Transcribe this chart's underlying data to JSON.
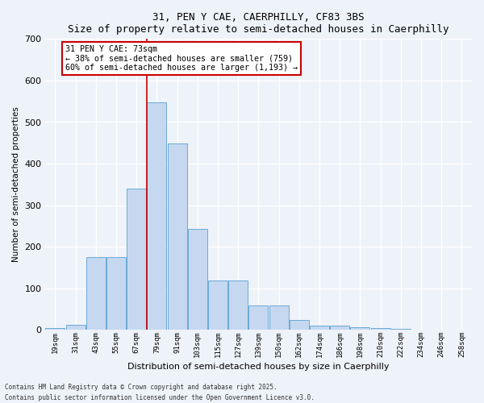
{
  "title1": "31, PEN Y CAE, CAERPHILLY, CF83 3BS",
  "title2": "Size of property relative to semi-detached houses in Caerphilly",
  "xlabel": "Distribution of semi-detached houses by size in Caerphilly",
  "ylabel": "Number of semi-detached properties",
  "bar_labels": [
    "19sqm",
    "31sqm",
    "43sqm",
    "55sqm",
    "67sqm",
    "79sqm",
    "91sqm",
    "103sqm",
    "115sqm",
    "127sqm",
    "139sqm",
    "150sqm",
    "162sqm",
    "174sqm",
    "186sqm",
    "198sqm",
    "210sqm",
    "222sqm",
    "234sqm",
    "246sqm",
    "258sqm"
  ],
  "bar_values": [
    5,
    13,
    175,
    175,
    340,
    548,
    448,
    243,
    120,
    120,
    58,
    58,
    25,
    10,
    10,
    7,
    4,
    2,
    0,
    0,
    0
  ],
  "bar_color": "#c5d8f0",
  "bar_edge_color": "#6baad8",
  "annotation_text": "31 PEN Y CAE: 73sqm\n← 38% of semi-detached houses are smaller (759)\n60% of semi-detached houses are larger (1,193) →",
  "annotation_box_color": "#ffffff",
  "annotation_box_edge": "#cc0000",
  "ylim": [
    0,
    700
  ],
  "yticks": [
    0,
    100,
    200,
    300,
    400,
    500,
    600,
    700
  ],
  "background_color": "#eef2f9",
  "grid_color": "#ffffff",
  "footnote": "Contains HM Land Registry data © Crown copyright and database right 2025.\nContains public sector information licensed under the Open Government Licence v3.0."
}
